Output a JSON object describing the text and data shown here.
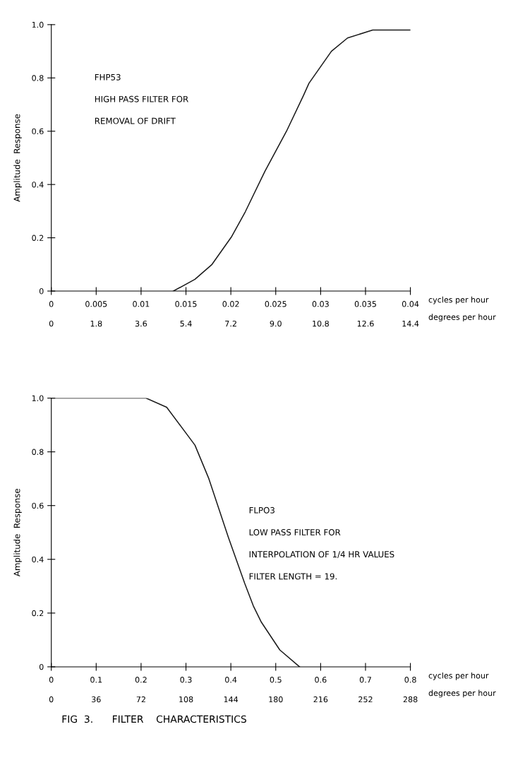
{
  "chart_data": [
    {
      "type": "line",
      "xlabel": "cycles per hour",
      "x2label": "degrees per hour",
      "ylabel": "Amplitude  Response",
      "annotations": [
        "FHP53",
        "HIGH PASS FILTER FOR",
        "REMOVAL OF DRIFT"
      ],
      "series": [
        {
          "color": "#1a1a1a",
          "x": [
            0.0136,
            0.016,
            0.0179,
            0.0201,
            0.0216,
            0.0238,
            0.0262,
            0.0281,
            0.0287,
            0.0312,
            0.033,
            0.0358,
            0.04
          ],
          "values": [
            0,
            0.044,
            0.1,
            0.205,
            0.297,
            0.45,
            0.6,
            0.735,
            0.78,
            0.9,
            0.95,
            0.98,
            0.98
          ]
        }
      ],
      "xlim": [
        0,
        0.04
      ],
      "ylim": [
        0,
        1.0
      ],
      "x2lim": [
        0,
        14.4
      ],
      "xticks": [
        0,
        0.005,
        0.01,
        0.015,
        0.02,
        0.025,
        0.03,
        0.035,
        0.04
      ],
      "x2ticks": [
        0,
        1.8,
        3.6,
        5.4,
        7.2,
        {
          "value": 9.0,
          "label": "9.0"
        },
        10.8,
        12.6,
        14.4
      ],
      "yticks": [
        0,
        0.2,
        0.4,
        0.6,
        0.8,
        {
          "value": 1.0,
          "label": "1.0"
        }
      ],
      "grid": false,
      "legend": false,
      "marker": "none",
      "line_style": "solid"
    },
    {
      "type": "line",
      "xlabel": "cycles per hour",
      "x2label": "degrees per hour",
      "ylabel": "Amplitude  Response",
      "annotations": [
        "FLPO3",
        "LOW PASS FILTER FOR",
        "INTERPOLATION OF 1/4 HR VALUES",
        "FILTER LENGTH = 19.",
        "FIG  3.      FILTER    CHARACTERISTICS"
      ],
      "series": [
        {
          "color": "#1a1a1a",
          "x": [
            0,
            0.211,
            0.257,
            0.32,
            0.351,
            0.394,
            0.431,
            0.45,
            0.468,
            0.509,
            0.553
          ],
          "values": [
            1.0,
            1.0,
            0.966,
            0.825,
            0.7,
            0.484,
            0.31,
            0.227,
            0.166,
            0.063,
            0
          ]
        }
      ],
      "xlim": [
        0,
        0.8
      ],
      "ylim": [
        0,
        1.0
      ],
      "x2lim": [
        0,
        288
      ],
      "xticks": [
        0,
        0.1,
        0.2,
        0.3,
        0.4,
        0.5,
        0.6,
        0.7,
        0.8
      ],
      "x2ticks": [
        0,
        36,
        72,
        108,
        144,
        180,
        216,
        252,
        288
      ],
      "yticks": [
        0,
        0.2,
        0.4,
        0.6,
        0.8,
        {
          "value": 1.0,
          "label": "1.0"
        }
      ],
      "grid": false,
      "legend": false,
      "marker": "none",
      "line_style": "solid"
    }
  ]
}
